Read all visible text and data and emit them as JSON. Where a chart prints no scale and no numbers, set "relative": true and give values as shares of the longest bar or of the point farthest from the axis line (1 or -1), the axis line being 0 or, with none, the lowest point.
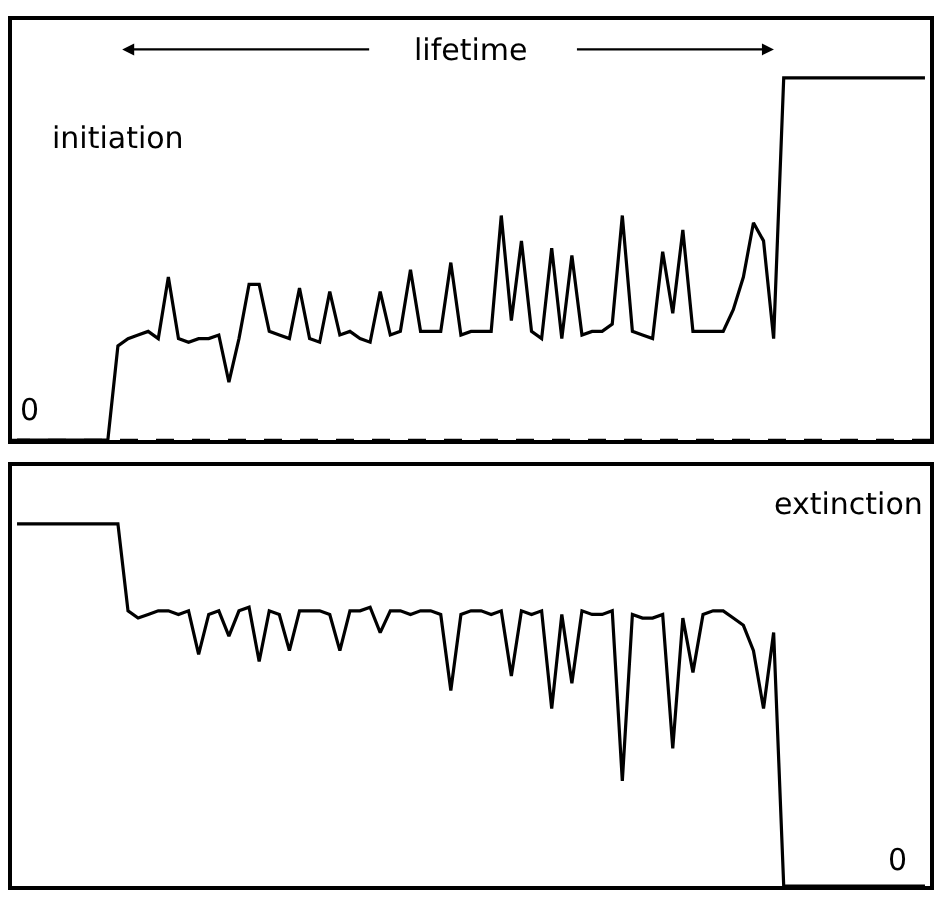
{
  "chart_data": [
    {
      "type": "line",
      "relative": true,
      "color": "#000000",
      "categories": [
        null,
        null,
        null,
        null,
        null,
        null,
        null,
        null,
        null,
        null,
        null,
        null,
        null,
        null,
        null,
        null,
        null,
        null,
        null,
        null,
        null,
        null,
        null,
        null,
        null,
        null,
        null,
        null,
        null,
        null,
        null,
        null,
        null,
        null,
        null,
        null,
        null,
        null,
        null,
        null,
        null,
        null,
        null,
        null,
        null,
        null,
        null,
        null,
        null,
        null,
        null,
        null,
        null,
        null,
        null,
        null,
        null,
        null,
        null,
        null,
        null,
        null,
        null,
        null,
        null,
        null,
        null,
        null,
        null,
        null,
        null,
        null,
        null,
        null,
        null,
        null,
        null,
        null,
        null,
        null,
        null,
        null,
        null,
        null,
        null,
        null,
        null,
        null,
        null,
        null,
        null
      ],
      "values": [
        0,
        0,
        0,
        0,
        0,
        0,
        0,
        0,
        0,
        0,
        0.26,
        0.28,
        0.29,
        0.3,
        0.28,
        0.45,
        0.28,
        0.27,
        0.28,
        0.28,
        0.29,
        0.16,
        0.28,
        0.43,
        0.43,
        0.3,
        0.29,
        0.28,
        0.42,
        0.28,
        0.27,
        0.41,
        0.29,
        0.3,
        0.28,
        0.27,
        0.41,
        0.29,
        0.3,
        0.47,
        0.3,
        0.3,
        0.3,
        0.49,
        0.29,
        0.3,
        0.3,
        0.3,
        0.62,
        0.33,
        0.55,
        0.3,
        0.28,
        0.53,
        0.28,
        0.51,
        0.29,
        0.3,
        0.3,
        0.32,
        0.62,
        0.3,
        0.29,
        0.28,
        0.52,
        0.35,
        0.58,
        0.3,
        0.3,
        0.3,
        0.3,
        0.36,
        0.45,
        0.6,
        0.55,
        0.28,
        1,
        1,
        1,
        1,
        1,
        1,
        1,
        1,
        1,
        1,
        1,
        1,
        1,
        1,
        1
      ],
      "ref_lines": [
        {
          "axis": "y",
          "value": 0,
          "line_style": "dashed"
        }
      ],
      "annotations": [
        "lifetime",
        "initiation",
        "0"
      ]
    },
    {
      "type": "line",
      "relative": true,
      "color": "#000000",
      "categories": [
        null,
        null,
        null,
        null,
        null,
        null,
        null,
        null,
        null,
        null,
        null,
        null,
        null,
        null,
        null,
        null,
        null,
        null,
        null,
        null,
        null,
        null,
        null,
        null,
        null,
        null,
        null,
        null,
        null,
        null,
        null,
        null,
        null,
        null,
        null,
        null,
        null,
        null,
        null,
        null,
        null,
        null,
        null,
        null,
        null,
        null,
        null,
        null,
        null,
        null,
        null,
        null,
        null,
        null,
        null,
        null,
        null,
        null,
        null,
        null,
        null,
        null,
        null,
        null,
        null,
        null,
        null,
        null,
        null,
        null,
        null,
        null,
        null,
        null,
        null,
        null,
        null,
        null,
        null,
        null,
        null,
        null,
        null,
        null,
        null,
        null,
        null,
        null,
        null,
        null,
        null
      ],
      "values": [
        1,
        1,
        1,
        1,
        1,
        1,
        1,
        1,
        1,
        1,
        1,
        0.76,
        0.74,
        0.75,
        0.76,
        0.76,
        0.75,
        0.76,
        0.64,
        0.75,
        0.76,
        0.69,
        0.76,
        0.77,
        0.62,
        0.76,
        0.75,
        0.65,
        0.76,
        0.76,
        0.76,
        0.75,
        0.65,
        0.76,
        0.76,
        0.77,
        0.7,
        0.76,
        0.76,
        0.75,
        0.76,
        0.76,
        0.75,
        0.54,
        0.75,
        0.76,
        0.76,
        0.75,
        0.76,
        0.58,
        0.76,
        0.75,
        0.76,
        0.49,
        0.75,
        0.56,
        0.76,
        0.75,
        0.75,
        0.76,
        0.29,
        0.75,
        0.74,
        0.74,
        0.75,
        0.38,
        0.74,
        0.59,
        0.75,
        0.76,
        0.76,
        0.74,
        0.72,
        0.65,
        0.49,
        0.7,
        0,
        0,
        0,
        0,
        0,
        0,
        0,
        0,
        0,
        0,
        0,
        0,
        0,
        0,
        0
      ],
      "annotations": [
        "extinction",
        "0"
      ]
    }
  ]
}
